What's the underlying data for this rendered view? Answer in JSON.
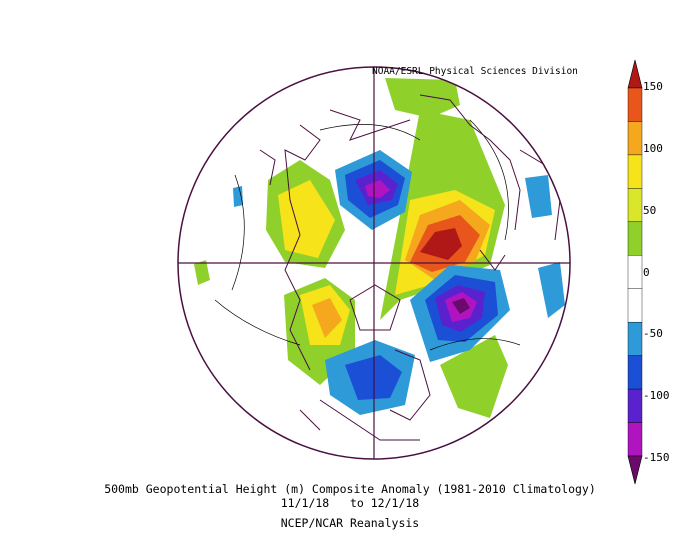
{
  "credit": "NOAA/ESRL Physical Sciences Division",
  "title": "500mb Geopotential Height (m) Composite Anomaly (1981-2010 Climatology)",
  "date_range": "11/1/18   to 12/1/18",
  "source": "NCEP/NCAR Reanalysis",
  "colorbar": {
    "labels": [
      "150",
      "100",
      "50",
      "0",
      "-50",
      "-100",
      "-150"
    ],
    "levels": [
      {
        "value": 150,
        "color": "#b01818"
      },
      {
        "value": 125,
        "color": "#e8561c"
      },
      {
        "value": 100,
        "color": "#f5a71e"
      },
      {
        "value": 75,
        "color": "#f6e31a"
      },
      {
        "value": 50,
        "color": "#d9e62a"
      },
      {
        "value": 25,
        "color": "#8fd12a"
      },
      {
        "value": 0,
        "color": "#ffffff"
      },
      {
        "value": -25,
        "color": "#ffffff"
      },
      {
        "value": -50,
        "color": "#2f9ad8"
      },
      {
        "value": -75,
        "color": "#1a4fd6"
      },
      {
        "value": -100,
        "color": "#5a22cf"
      },
      {
        "value": -125,
        "color": "#b014c0"
      },
      {
        "value": -150,
        "color": "#6a0a6a"
      }
    ]
  }
}
